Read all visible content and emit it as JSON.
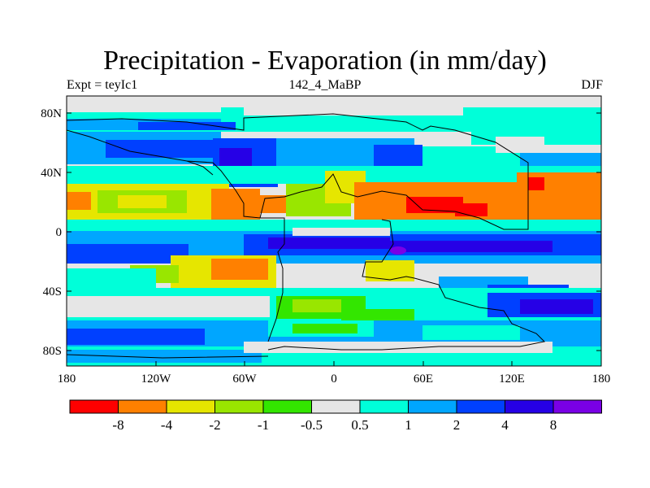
{
  "title": "Precipitation - Evaporation (in mm/day)",
  "subtitle_left": "Expt = teyIc1",
  "subtitle_center": "142_4_MaBP",
  "subtitle_right": "DJF",
  "y_ticks": [
    "80N",
    "40N",
    "0",
    "40S",
    "80S"
  ],
  "x_ticks": [
    "180",
    "120W",
    "60W",
    "0",
    "60E",
    "120E",
    "180"
  ],
  "colorbar": {
    "colors": [
      "#ff0000",
      "#ff8000",
      "#e6e600",
      "#99e600",
      "#33e600",
      "#e6e6e6",
      "#00ffd9",
      "#00a6ff",
      "#0040ff",
      "#2600e6",
      "#7a00e6"
    ],
    "labels": [
      "-8",
      "-4",
      "-2",
      "-1",
      "-0.5",
      "0.5",
      "1",
      "2",
      "4",
      "8"
    ]
  }
}
